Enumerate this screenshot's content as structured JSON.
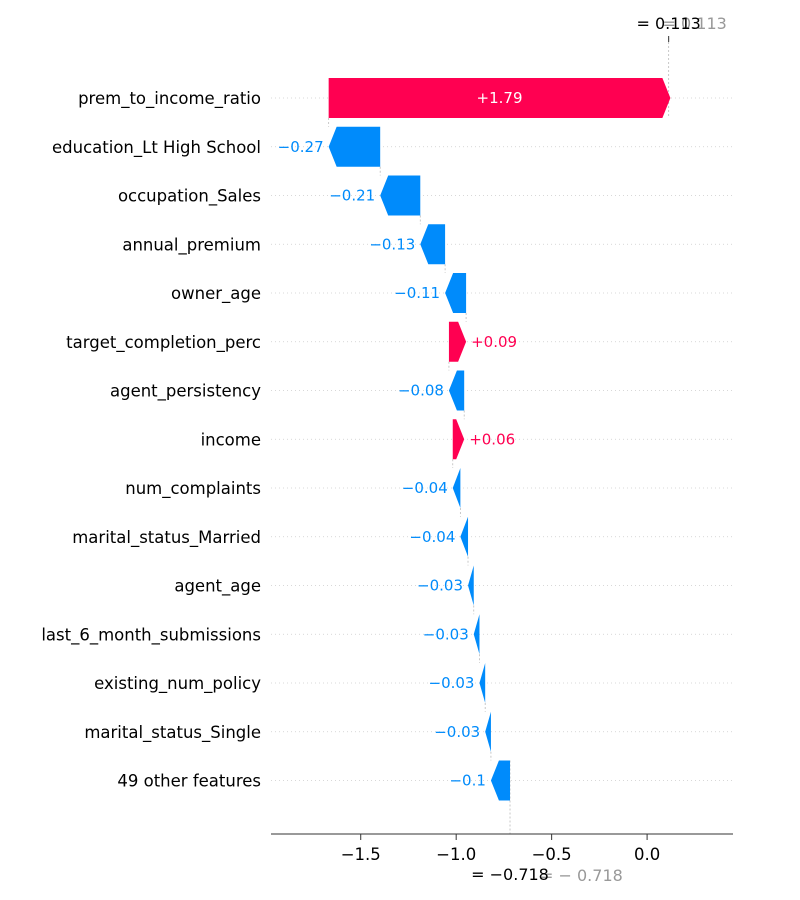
{
  "chart_data": {
    "type": "waterfall",
    "base_value": -0.718,
    "final_value": 0.113,
    "final_label": "= 0.113",
    "final_label_ghost": "= 0.113",
    "base_label": "= −0.718",
    "base_label_ghost": "= − 0.718",
    "features": [
      {
        "name": "prem_to_income_ratio",
        "value": 1.79,
        "label": "+1.79"
      },
      {
        "name": "education_Lt High School",
        "value": -0.27,
        "label": "−0.27"
      },
      {
        "name": "occupation_Sales",
        "value": -0.21,
        "label": "−0.21"
      },
      {
        "name": "annual_premium",
        "value": -0.13,
        "label": "−0.13"
      },
      {
        "name": "owner_age",
        "value": -0.11,
        "label": "−0.11"
      },
      {
        "name": "target_completion_perc",
        "value": 0.09,
        "label": "+0.09"
      },
      {
        "name": "agent_persistency",
        "value": -0.08,
        "label": "−0.08"
      },
      {
        "name": "income",
        "value": 0.06,
        "label": "+0.06"
      },
      {
        "name": "num_complaints",
        "value": -0.04,
        "label": "−0.04"
      },
      {
        "name": "marital_status_Married",
        "value": -0.04,
        "label": "−0.04"
      },
      {
        "name": "agent_age",
        "value": -0.03,
        "label": "−0.03"
      },
      {
        "name": "last_6_month_submissions",
        "value": -0.03,
        "label": "−0.03"
      },
      {
        "name": "existing_num_policy",
        "value": -0.03,
        "label": "−0.03"
      },
      {
        "name": "marital_status_Single",
        "value": -0.03,
        "label": "−0.03"
      },
      {
        "name": "49 other features",
        "value": -0.1,
        "label": "−0.1"
      }
    ],
    "xlim": [
      -1.97,
      0.45
    ],
    "xticks": [
      -1.5,
      -1.0,
      -0.5,
      0.0
    ],
    "xtick_labels": [
      "−1.5",
      "−1.0",
      "−0.5",
      "0.0"
    ],
    "grid": true,
    "colors": {
      "positive": "#ff0051",
      "negative": "#008bfb",
      "text": "#000000",
      "ghost_text": "#999999",
      "grid": "#cccccc",
      "axis": "#333333"
    }
  }
}
